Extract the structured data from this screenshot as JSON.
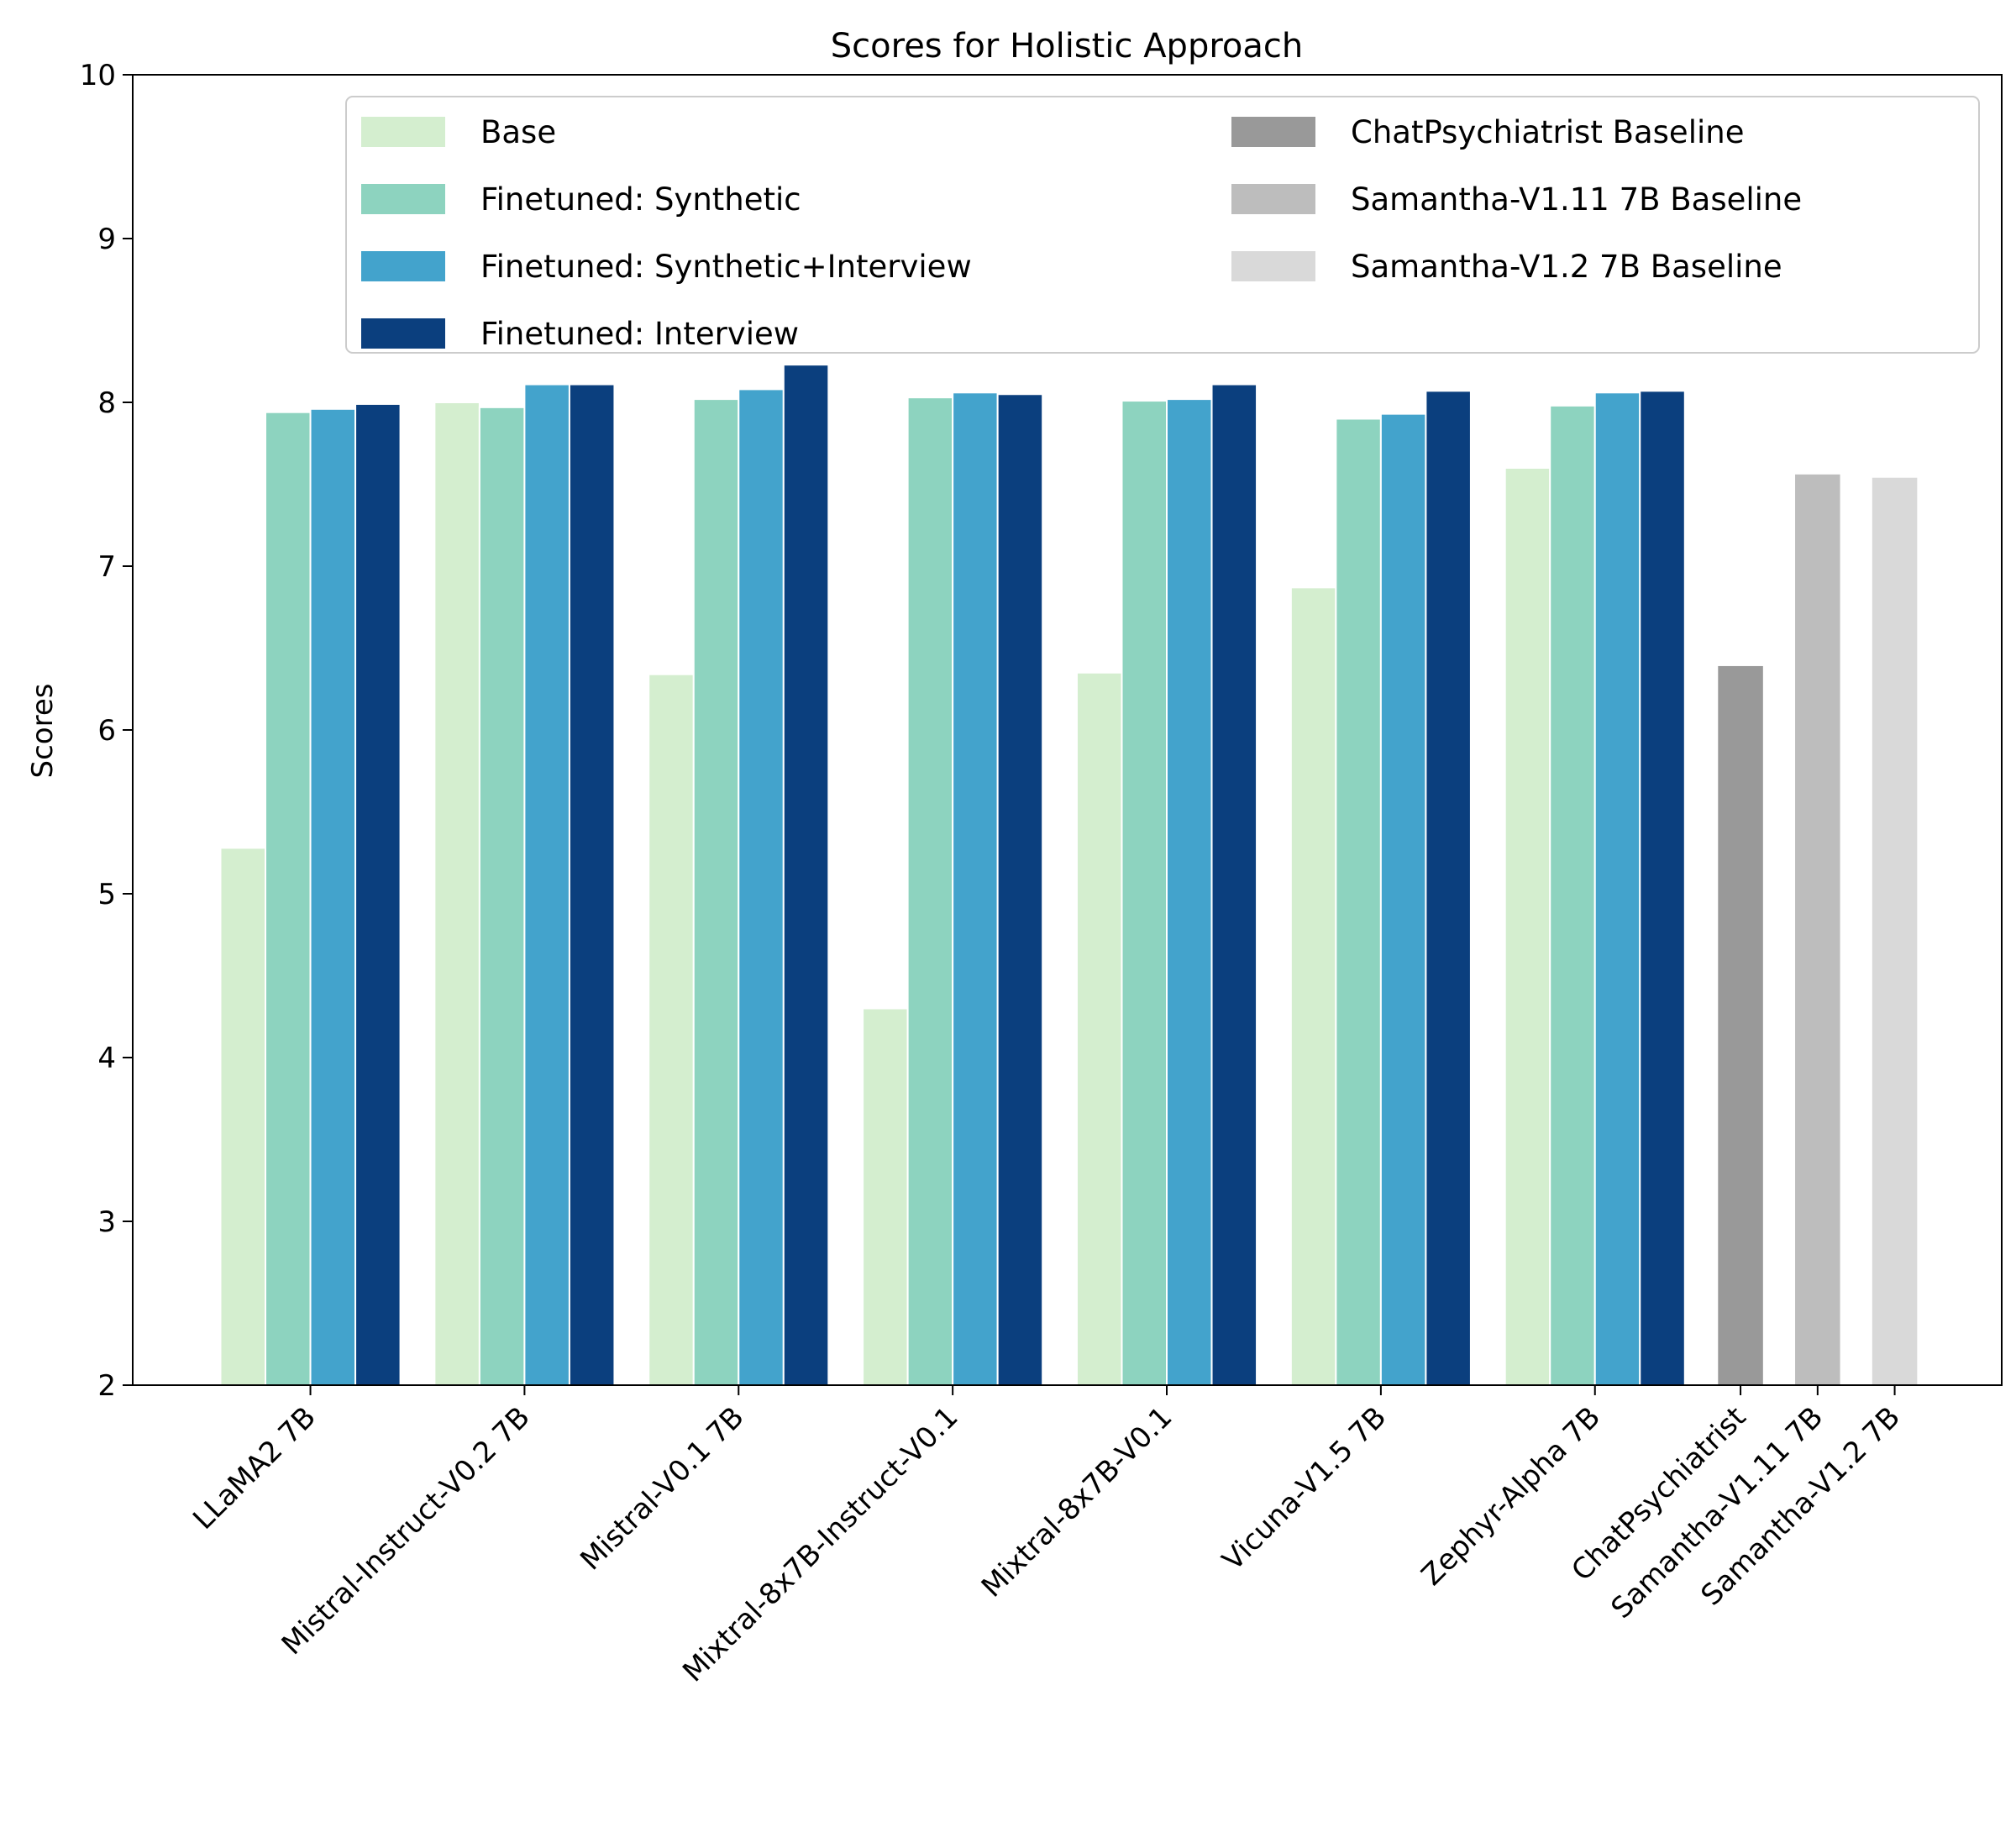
{
  "chart_data": {
    "type": "bar",
    "title": "Scores for Holistic Approach",
    "xlabel": "",
    "ylabel": "Scores",
    "ylim": [
      2,
      10
    ],
    "yticks": [
      2,
      3,
      4,
      5,
      6,
      7,
      8,
      9,
      10
    ],
    "grid": false,
    "legend_placement": "top-right",
    "categories": [
      "LLaMA2 7B",
      "Mistral-Instruct-V0.2 7B",
      "Mistral-V0.1 7B",
      "Mixtral-8x7B-Instruct-V0.1",
      "Mixtral-8x7B-V0.1",
      "Vicuna-V1.5 7B",
      "Zephyr-Alpha 7B"
    ],
    "series": [
      {
        "name": "Base",
        "color": "#d4eecf",
        "values": [
          5.28,
          8.0,
          6.34,
          4.3,
          6.35,
          6.87,
          7.6
        ]
      },
      {
        "name": "Finetuned: Synthetic",
        "color": "#8dd3bf",
        "values": [
          7.94,
          7.97,
          8.02,
          8.03,
          8.01,
          7.9,
          7.98
        ]
      },
      {
        "name": "Finetuned: Synthetic+Interview",
        "color": "#43a3cc",
        "values": [
          7.96,
          8.11,
          8.08,
          8.06,
          8.02,
          7.93,
          8.06
        ]
      },
      {
        "name": "Finetuned: Interview",
        "color": "#0b3f7e",
        "values": [
          7.99,
          8.11,
          8.23,
          8.05,
          8.11,
          8.07,
          8.07
        ]
      }
    ],
    "baselines": [
      {
        "category": "ChatPsychiatrist",
        "name": "ChatPsychiatrist Baseline",
        "color": "#999999",
        "value": 6.39
      },
      {
        "category": "Samantha-V1.11 7B",
        "name": "Samantha-V1.11 7B Baseline",
        "color": "#bdbdbd",
        "value": 7.56
      },
      {
        "category": "Samantha-V1.2 7B",
        "name": "Samantha-V1.2 7B Baseline",
        "color": "#d9d9d9",
        "value": 7.54
      }
    ]
  }
}
